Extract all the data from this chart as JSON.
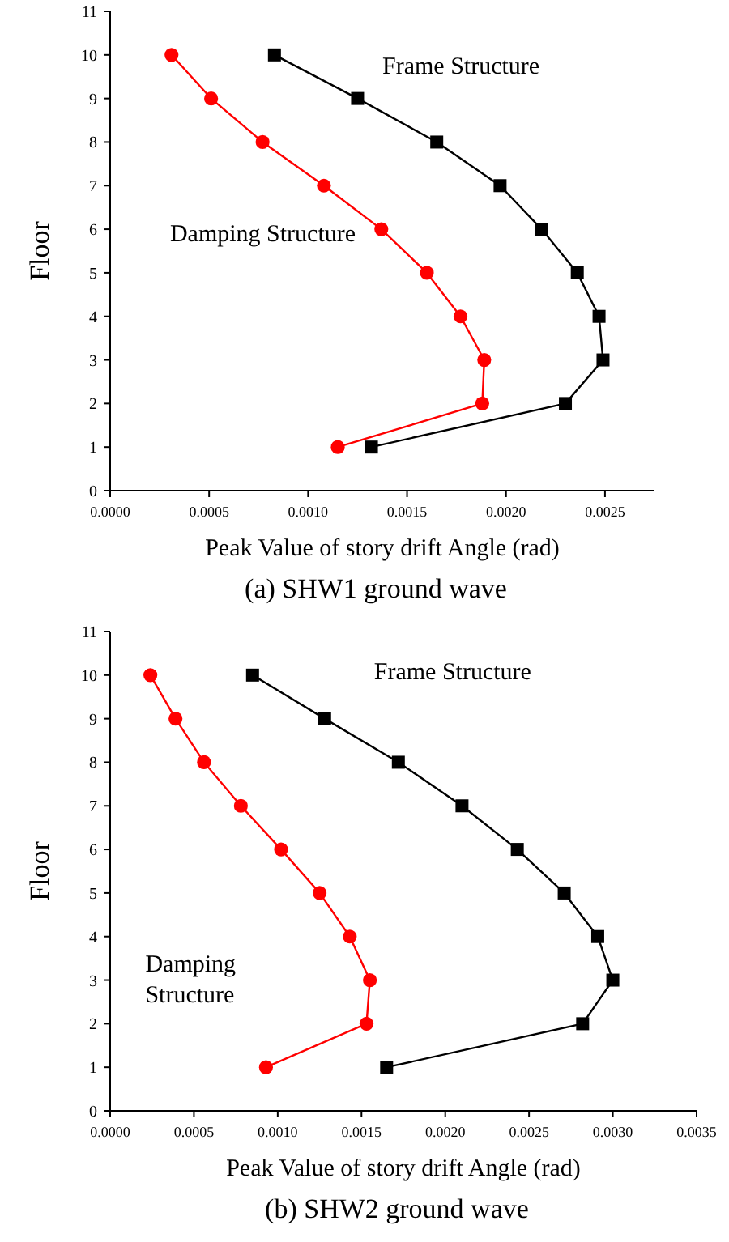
{
  "chart_data": [
    {
      "type": "line",
      "title": "(a) SHW1 ground wave",
      "xlabel": "Peak Value of story drift Angle (rad)",
      "ylabel": "Floor",
      "xlim": [
        0,
        0.00275
      ],
      "xticks": [
        {
          "value": 0,
          "label": "0.0000"
        },
        {
          "value": 0.0005,
          "label": "0.0005"
        },
        {
          "value": 0.001,
          "label": "0.0010"
        },
        {
          "value": 0.0015,
          "label": "0.0015"
        },
        {
          "value": 0.002,
          "label": "0.0020"
        },
        {
          "value": 0.0025,
          "label": "0.0025"
        }
      ],
      "ylim": [
        0,
        11
      ],
      "yticks": [
        0,
        1,
        2,
        3,
        4,
        5,
        6,
        7,
        8,
        9,
        10,
        11
      ],
      "grid": false,
      "legend": false,
      "series": [
        {
          "name": "Frame Structure",
          "color": "#000000",
          "marker": "square",
          "x": [
            0.00083,
            0.00125,
            0.00165,
            0.00197,
            0.00218,
            0.00236,
            0.00247,
            0.00249,
            0.0023,
            0.00132
          ],
          "values": [
            10,
            9,
            8,
            7,
            6,
            5,
            4,
            3,
            2,
            1
          ]
        },
        {
          "name": "Damping Structure",
          "color": "#ff0000",
          "marker": "circle",
          "x": [
            0.00031,
            0.00051,
            0.00077,
            0.00108,
            0.00137,
            0.0016,
            0.00177,
            0.00189,
            0.00188,
            0.00115
          ],
          "values": [
            10,
            9,
            8,
            7,
            6,
            5,
            4,
            3,
            2,
            1
          ]
        }
      ]
    },
    {
      "type": "line",
      "title": "(b) SHW2 ground wave",
      "xlabel": "Peak Value of story drift Angle (rad)",
      "ylabel": "Floor",
      "xlim": [
        0,
        0.0035
      ],
      "xticks": [
        {
          "value": 0,
          "label": "0.0000"
        },
        {
          "value": 0.0005,
          "label": "0.0005"
        },
        {
          "value": 0.001,
          "label": "0.0010"
        },
        {
          "value": 0.0015,
          "label": "0.0015"
        },
        {
          "value": 0.002,
          "label": "0.0020"
        },
        {
          "value": 0.0025,
          "label": "0.0025"
        },
        {
          "value": 0.003,
          "label": "0.0030"
        },
        {
          "value": 0.0035,
          "label": "0.0035"
        }
      ],
      "ylim": [
        0,
        11
      ],
      "yticks": [
        0,
        1,
        2,
        3,
        4,
        5,
        6,
        7,
        8,
        9,
        10,
        11
      ],
      "grid": false,
      "legend": false,
      "series": [
        {
          "name": "Frame Structure",
          "color": "#000000",
          "marker": "square",
          "x": [
            0.00085,
            0.00128,
            0.00172,
            0.0021,
            0.00243,
            0.00271,
            0.00291,
            0.003,
            0.00282,
            0.00165
          ],
          "values": [
            10,
            9,
            8,
            7,
            6,
            5,
            4,
            3,
            2,
            1
          ]
        },
        {
          "name": "Damping Structure",
          "color": "#ff0000",
          "marker": "circle",
          "x": [
            0.00024,
            0.00039,
            0.00056,
            0.00078,
            0.00102,
            0.00125,
            0.00143,
            0.00155,
            0.00153,
            0.00093
          ],
          "values": [
            10,
            9,
            8,
            7,
            6,
            5,
            4,
            3,
            2,
            1
          ]
        }
      ]
    }
  ]
}
